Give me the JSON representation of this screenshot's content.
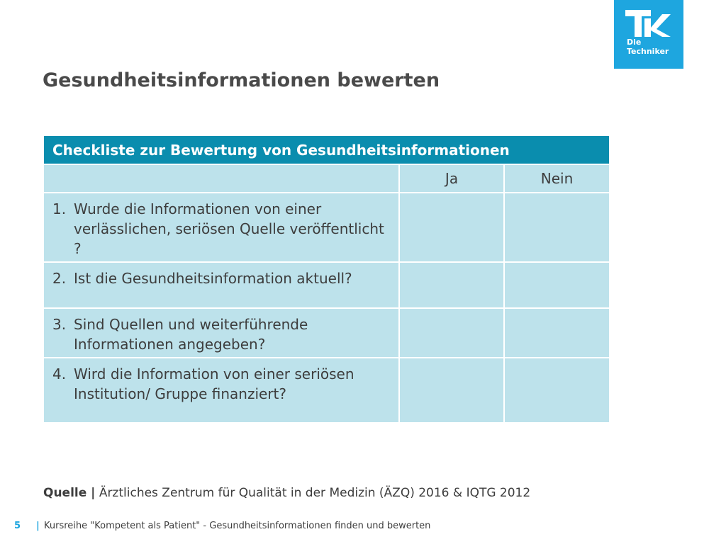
{
  "logo": {
    "line1": "Die",
    "line2": "Techniker",
    "color": "#1ea6df",
    "mark": "tk-logo-icon"
  },
  "slide": {
    "title": "Gesundheitsinformationen bewerten"
  },
  "table": {
    "header": "Checkliste zur Bewertung von Gesundheitsinformationen",
    "columns": [
      "",
      "Ja",
      "Nein"
    ],
    "rows": [
      {
        "num": "1.",
        "text": "Wurde die Informationen von einer verlässlichen, seriösen Quelle veröffentlicht ?",
        "ja": "",
        "nein": ""
      },
      {
        "num": "2.",
        "text": "Ist die Gesundheitsinformation aktuell?",
        "ja": "",
        "nein": ""
      },
      {
        "num": "3.",
        "text": "Sind Quellen und weiterführende Informationen angegeben?",
        "ja": "",
        "nein": ""
      },
      {
        "num": "4.",
        "text": "Wird die Information von einer seriösen Institution/ Gruppe finanziert?",
        "ja": "",
        "nein": ""
      }
    ],
    "colors": {
      "header_bg": "#0a8dae",
      "cell_bg": "#bde2eb"
    }
  },
  "source": {
    "label": "Quelle |",
    "text": "Ärztliches Zentrum für Qualität in der Medizin (ÄZQ) 2016 & IQTG 2012"
  },
  "footer": {
    "page": "5",
    "separator": "|",
    "text": "Kursreihe \"Kompetent als Patient\" - Gesundheitsinformationen finden und bewerten"
  }
}
